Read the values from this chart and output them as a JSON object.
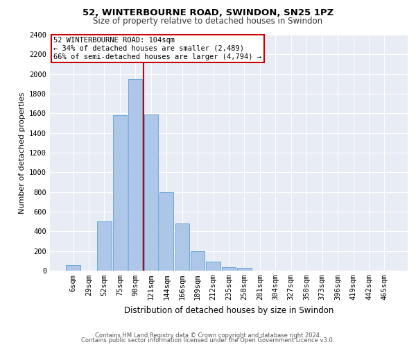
{
  "title1": "52, WINTERBOURNE ROAD, SWINDON, SN25 1PZ",
  "title2": "Size of property relative to detached houses in Swindon",
  "xlabel": "Distribution of detached houses by size in Swindon",
  "ylabel": "Number of detached properties",
  "categories": [
    "6sqm",
    "29sqm",
    "52sqm",
    "75sqm",
    "98sqm",
    "121sqm",
    "144sqm",
    "166sqm",
    "189sqm",
    "212sqm",
    "235sqm",
    "258sqm",
    "281sqm",
    "304sqm",
    "327sqm",
    "350sqm",
    "373sqm",
    "396sqm",
    "419sqm",
    "442sqm",
    "465sqm"
  ],
  "values": [
    60,
    0,
    500,
    1580,
    1950,
    1590,
    800,
    480,
    195,
    90,
    35,
    25,
    0,
    0,
    0,
    0,
    0,
    0,
    0,
    0,
    0
  ],
  "bar_color": "#aec6e8",
  "bar_edge_color": "#5a9fd4",
  "vline_x": 4.5,
  "vline_color": "#cc0000",
  "annotation_text": "52 WINTERBOURNE ROAD: 104sqm\n← 34% of detached houses are smaller (2,489)\n66% of semi-detached houses are larger (4,794) →",
  "annotation_box_color": "#ffffff",
  "annotation_box_edge": "#cc0000",
  "ylim": [
    0,
    2400
  ],
  "yticks": [
    0,
    200,
    400,
    600,
    800,
    1000,
    1200,
    1400,
    1600,
    1800,
    2000,
    2200,
    2400
  ],
  "footer1": "Contains HM Land Registry data © Crown copyright and database right 2024.",
  "footer2": "Contains public sector information licensed under the Open Government Licence v3.0.",
  "plot_bg_color": "#e8ecf5",
  "grid_color": "#ffffff",
  "title1_fontsize": 9.5,
  "title2_fontsize": 8.5,
  "xlabel_fontsize": 8.5,
  "ylabel_fontsize": 8.0,
  "tick_fontsize": 7.5,
  "annot_fontsize": 7.5,
  "footer_fontsize": 6.0
}
